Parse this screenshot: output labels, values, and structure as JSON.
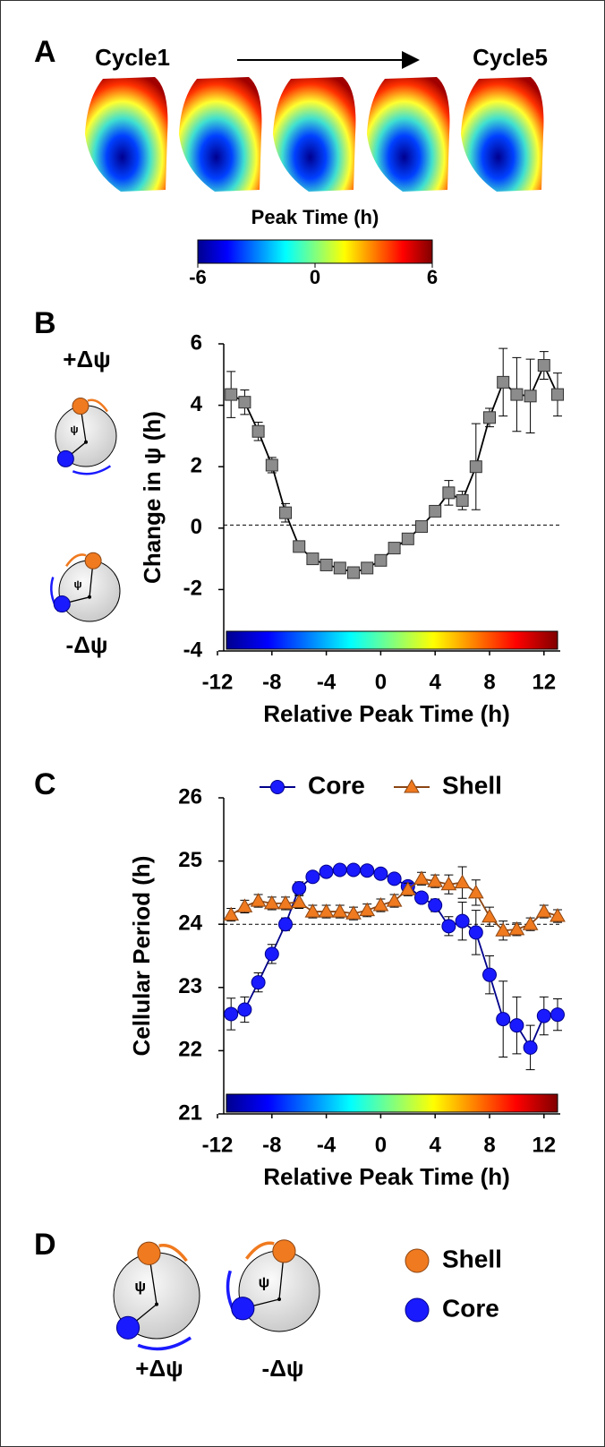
{
  "panel_labels": [
    "A",
    "B",
    "C",
    "D"
  ],
  "panel_a": {
    "cycle_start": "Cycle1",
    "cycle_end": "Cycle5",
    "colorbar": {
      "label": "Peak Time (h)",
      "lim": [
        -6,
        6
      ],
      "ticks": [
        -6,
        0,
        6
      ]
    }
  },
  "diagrams": {
    "plus_label": "+Δψ",
    "minus_label": "-Δψ",
    "psi": "ψ"
  },
  "chart_data": [
    {
      "type": "line",
      "ylabel": "Change in ψ (h)",
      "xlabel": "Relative Peak Time (h)",
      "xlim": [
        -12,
        13
      ],
      "xticks": [
        -12,
        -8,
        -4,
        0,
        4,
        8,
        12
      ],
      "ylim": [
        -4,
        6
      ],
      "yticks": [
        -4,
        -2,
        0,
        2,
        4,
        6
      ],
      "reference_line": 0.1,
      "x": [
        -11,
        -10,
        -9,
        -8,
        -7,
        -6,
        -5,
        -4,
        -3,
        -2,
        -1,
        0,
        1,
        2,
        3,
        4,
        5,
        6,
        7,
        8,
        9,
        10,
        11,
        12,
        13
      ],
      "series": [
        {
          "color": "#8c8c8c",
          "line_color": "#000000",
          "marker": "square",
          "values": [
            4.35,
            4.1,
            3.15,
            2.05,
            0.5,
            -0.6,
            -1.0,
            -1.2,
            -1.3,
            -1.45,
            -1.3,
            -1.05,
            -0.65,
            -0.35,
            0.05,
            0.55,
            1.15,
            0.9,
            2.0,
            3.6,
            4.75,
            4.35,
            4.3,
            5.3,
            4.35
          ],
          "errors": [
            0.75,
            0.4,
            0.3,
            0.25,
            0.3,
            0.15,
            0.1,
            0.1,
            0.1,
            0.1,
            0.1,
            0.1,
            0.1,
            0.15,
            0.15,
            0.15,
            0.4,
            0.3,
            1.4,
            0.3,
            1.1,
            1.2,
            1.2,
            0.45,
            0.7
          ]
        }
      ]
    },
    {
      "type": "line",
      "ylabel": "Cellular Period (h)",
      "xlabel": "Relative Peak Time (h)",
      "xlim": [
        -12,
        13
      ],
      "xticks": [
        -12,
        -8,
        -4,
        0,
        4,
        8,
        12
      ],
      "ylim": [
        21,
        26
      ],
      "yticks": [
        21,
        22,
        23,
        24,
        25,
        26
      ],
      "reference_line": 24,
      "legend": "top",
      "x": [
        -11,
        -10,
        -9,
        -8,
        -7,
        -6,
        -5,
        -4,
        -3,
        -2,
        -1,
        0,
        1,
        2,
        3,
        4,
        5,
        6,
        7,
        8,
        9,
        10,
        11,
        12,
        13
      ],
      "series": [
        {
          "name": "Core",
          "color": "#1a1aff",
          "line_color": "#00008b",
          "marker": "circle",
          "values": [
            22.58,
            22.65,
            23.08,
            23.53,
            24.0,
            24.57,
            24.75,
            24.83,
            24.86,
            24.86,
            24.85,
            24.8,
            24.72,
            24.6,
            24.42,
            24.3,
            23.97,
            24.05,
            23.87,
            23.2,
            22.5,
            22.4,
            22.05,
            22.55,
            22.57
          ],
          "errors": [
            0.25,
            0.2,
            0.15,
            0.15,
            0.1,
            0.1,
            0.05,
            0.05,
            0.05,
            0.05,
            0.05,
            0.05,
            0.05,
            0.05,
            0.05,
            0.1,
            0.15,
            0.3,
            0.35,
            0.3,
            0.6,
            0.45,
            0.35,
            0.3,
            0.25
          ]
        },
        {
          "name": "Shell",
          "color": "#f07a1f",
          "line_color": "#8b4513",
          "marker": "triangle",
          "values": [
            24.15,
            24.28,
            24.37,
            24.33,
            24.33,
            24.35,
            24.2,
            24.2,
            24.2,
            24.17,
            24.22,
            24.3,
            24.37,
            24.55,
            24.72,
            24.68,
            24.63,
            24.66,
            24.5,
            24.12,
            23.9,
            23.92,
            24.0,
            24.2,
            24.13
          ],
          "errors": [
            0.1,
            0.1,
            0.1,
            0.1,
            0.1,
            0.1,
            0.1,
            0.1,
            0.1,
            0.1,
            0.1,
            0.1,
            0.1,
            0.1,
            0.1,
            0.1,
            0.15,
            0.25,
            0.2,
            0.15,
            0.15,
            0.1,
            0.1,
            0.1,
            0.1
          ]
        }
      ]
    }
  ]
}
